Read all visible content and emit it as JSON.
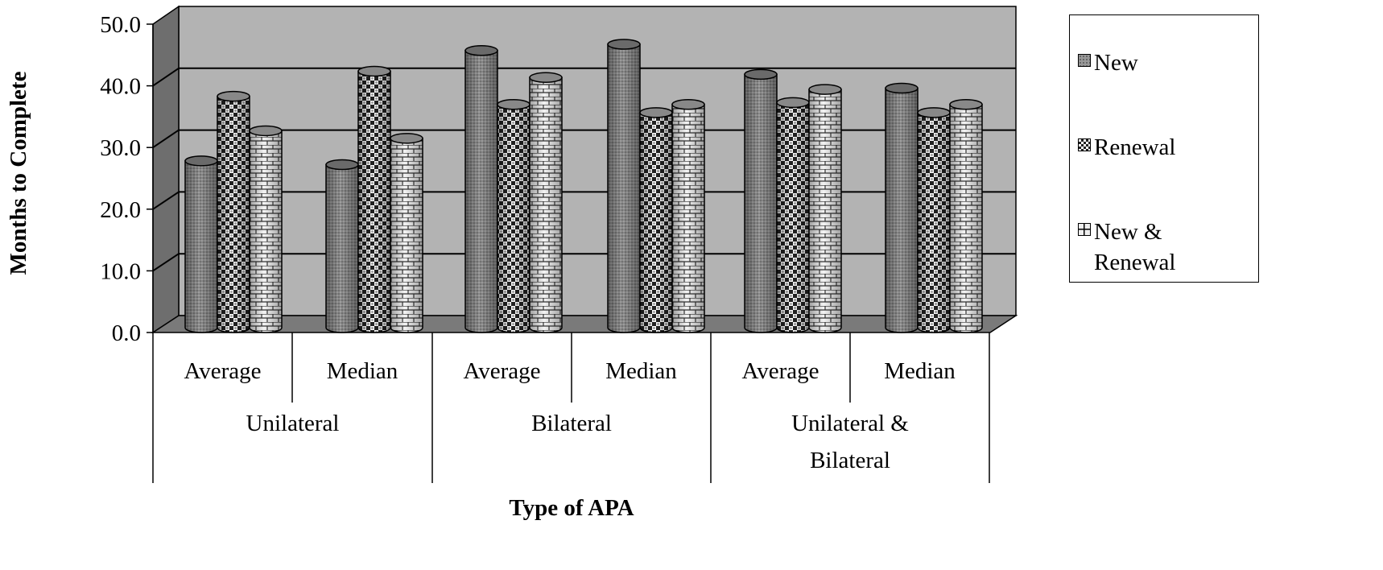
{
  "chart_data": {
    "type": "bar",
    "title": "",
    "xlabel": "Type of APA",
    "ylabel": "Months to Complete",
    "ylim": [
      0,
      50
    ],
    "yticks": [
      "0.0",
      "10.0",
      "20.0",
      "30.0",
      "40.0",
      "50.0"
    ],
    "groups": [
      {
        "label": "Unilateral",
        "categories": [
          "Average",
          "Median"
        ]
      },
      {
        "label": "Bilateral",
        "categories": [
          "Average",
          "Median"
        ]
      },
      {
        "label": "Unilateral & Bilateral",
        "categories": [
          "Average",
          "Median"
        ]
      }
    ],
    "categories": [
      "Unilateral Average",
      "Unilateral Median",
      "Bilateral Average",
      "Bilateral Median",
      "Unilateral & Bilateral Average",
      "Unilateral & Bilateral Median"
    ],
    "series": [
      {
        "name": "New",
        "pattern": "fine-dots",
        "values": [
          26.6,
          26.0,
          44.2,
          45.2,
          40.4,
          38.2
        ]
      },
      {
        "name": "Renewal",
        "pattern": "checker",
        "values": [
          36.9,
          40.9,
          35.6,
          34.3,
          35.9,
          34.3
        ]
      },
      {
        "name": "New & Renewal",
        "pattern": "brick",
        "values": [
          31.4,
          30.2,
          39.9,
          35.6,
          38.0,
          35.6
        ]
      }
    ],
    "grid": true,
    "legend": "right",
    "colors": {
      "wall": "#b3b3b3",
      "side": "#6e6e6e",
      "floor": "#7a7a7a",
      "new": "#8a8a8a"
    }
  }
}
